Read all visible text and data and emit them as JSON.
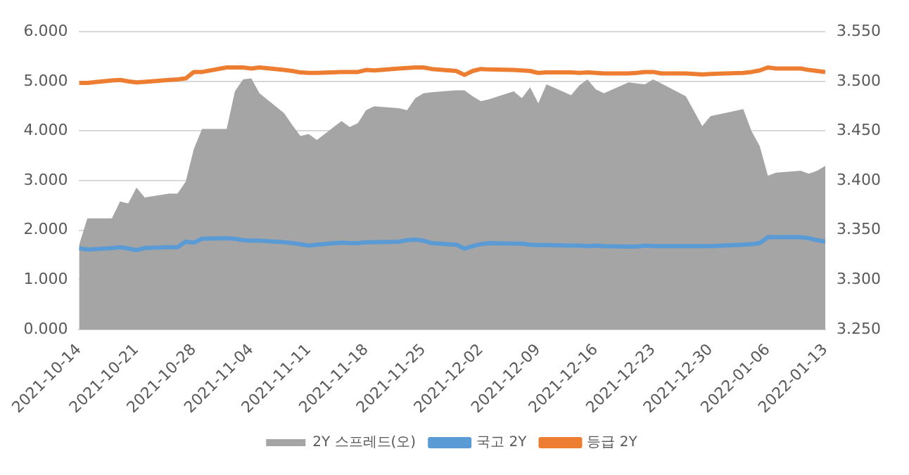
{
  "chart_data": {
    "type": "line",
    "x": [
      "2021-10-14",
      "2021-10-15",
      "2021-10-18",
      "2021-10-19",
      "2021-10-20",
      "2021-10-21",
      "2021-10-22",
      "2021-10-25",
      "2021-10-26",
      "2021-10-27",
      "2021-10-28",
      "2021-10-29",
      "2021-11-01",
      "2021-11-02",
      "2021-11-03",
      "2021-11-04",
      "2021-11-05",
      "2021-11-08",
      "2021-11-09",
      "2021-11-10",
      "2021-11-11",
      "2021-11-12",
      "2021-11-15",
      "2021-11-16",
      "2021-11-17",
      "2021-11-18",
      "2021-11-19",
      "2021-11-22",
      "2021-11-23",
      "2021-11-24",
      "2021-11-25",
      "2021-11-26",
      "2021-11-29",
      "2021-11-30",
      "2021-12-01",
      "2021-12-02",
      "2021-12-03",
      "2021-12-06",
      "2021-12-07",
      "2021-12-08",
      "2021-12-09",
      "2021-12-10",
      "2021-12-13",
      "2021-12-14",
      "2021-12-15",
      "2021-12-16",
      "2021-12-17",
      "2021-12-20",
      "2021-12-21",
      "2021-12-22",
      "2021-12-23",
      "2021-12-24",
      "2021-12-27",
      "2021-12-28",
      "2021-12-29",
      "2021-12-30",
      "2022-01-03",
      "2022-01-04",
      "2022-01-05",
      "2022-01-06",
      "2022-01-07",
      "2022-01-10",
      "2022-01-11",
      "2022-01-12",
      "2022-01-13"
    ],
    "series": [
      {
        "name": "2Y 스프레드(오)",
        "type": "area",
        "axis": "y2",
        "color": "#a5a5a5",
        "values": [
          3.335,
          3.362,
          3.362,
          3.379,
          3.377,
          3.393,
          3.383,
          3.387,
          3.387,
          3.399,
          3.432,
          3.452,
          3.452,
          3.49,
          3.502,
          3.503,
          3.488,
          3.468,
          3.456,
          3.445,
          3.447,
          3.441,
          3.46,
          3.454,
          3.458,
          3.471,
          3.475,
          3.473,
          3.471,
          3.483,
          3.488,
          3.489,
          3.491,
          3.491,
          3.485,
          3.48,
          3.482,
          3.49,
          3.483,
          3.494,
          3.478,
          3.497,
          3.486,
          3.496,
          3.502,
          3.492,
          3.488,
          3.499,
          3.498,
          3.497,
          3.502,
          3.498,
          3.485,
          3.47,
          3.455,
          3.465,
          3.472,
          3.45,
          3.435,
          3.405,
          3.408,
          3.41,
          3.407,
          3.41,
          3.415
        ]
      },
      {
        "name": "국고 2Y",
        "type": "line",
        "color": "#5b9bd5",
        "values": [
          1.64,
          1.61,
          1.64,
          1.66,
          1.63,
          1.6,
          1.64,
          1.66,
          1.66,
          1.77,
          1.75,
          1.83,
          1.84,
          1.83,
          1.8,
          1.79,
          1.79,
          1.76,
          1.74,
          1.72,
          1.69,
          1.71,
          1.75,
          1.74,
          1.74,
          1.76,
          1.76,
          1.77,
          1.8,
          1.81,
          1.79,
          1.74,
          1.71,
          1.63,
          1.68,
          1.72,
          1.74,
          1.73,
          1.73,
          1.71,
          1.7,
          1.7,
          1.69,
          1.69,
          1.68,
          1.69,
          1.68,
          1.67,
          1.67,
          1.69,
          1.68,
          1.68,
          1.68,
          1.68,
          1.68,
          1.68,
          1.71,
          1.72,
          1.74,
          1.86,
          1.86,
          1.86,
          1.84,
          1.8,
          1.77
        ]
      },
      {
        "name": "등급 2Y",
        "type": "line",
        "color": "#ed7d31",
        "values": [
          4.97,
          4.97,
          5.02,
          5.03,
          5.0,
          4.98,
          4.99,
          5.03,
          5.04,
          5.06,
          5.19,
          5.19,
          5.28,
          5.28,
          5.28,
          5.26,
          5.28,
          5.23,
          5.21,
          5.18,
          5.17,
          5.17,
          5.19,
          5.19,
          5.19,
          5.23,
          5.22,
          5.26,
          5.27,
          5.28,
          5.28,
          5.25,
          5.21,
          5.13,
          5.21,
          5.25,
          5.24,
          5.23,
          5.22,
          5.21,
          5.17,
          5.18,
          5.18,
          5.17,
          5.18,
          5.17,
          5.16,
          5.16,
          5.17,
          5.19,
          5.19,
          5.16,
          5.16,
          5.15,
          5.14,
          5.15,
          5.17,
          5.19,
          5.22,
          5.28,
          5.26,
          5.26,
          5.23,
          5.21,
          5.19
        ]
      }
    ],
    "xlim": [
      "2021-10-14",
      "2022-01-13"
    ],
    "xticks": [
      "2021-10-14",
      "2021-10-21",
      "2021-10-28",
      "2021-11-04",
      "2021-11-11",
      "2021-11-18",
      "2021-11-25",
      "2021-12-02",
      "2021-12-09",
      "2021-12-16",
      "2021-12-23",
      "2021-12-30",
      "2022-01-06",
      "2022-01-13"
    ],
    "ylim": [
      0,
      6
    ],
    "yticks": [
      {
        "value": 0,
        "label": "0.000"
      },
      {
        "value": 1,
        "label": "1.000"
      },
      {
        "value": 2,
        "label": "2.000"
      },
      {
        "value": 3,
        "label": "3.000"
      },
      {
        "value": 4,
        "label": "4.000"
      },
      {
        "value": 5,
        "label": "5.000"
      },
      {
        "value": 6,
        "label": "6.000"
      }
    ],
    "y2lim": [
      3.25,
      3.55
    ],
    "y2ticks": [
      {
        "value": 3.25,
        "label": "3.250"
      },
      {
        "value": 3.3,
        "label": "3.300"
      },
      {
        "value": 3.35,
        "label": "3.350"
      },
      {
        "value": 3.4,
        "label": "3.400"
      },
      {
        "value": 3.45,
        "label": "3.450"
      },
      {
        "value": 3.5,
        "label": "3.500"
      },
      {
        "value": 3.55,
        "label": "3.550"
      }
    ],
    "grid": "y",
    "legend": "bottom",
    "marker": "none",
    "line_style": "solid"
  }
}
